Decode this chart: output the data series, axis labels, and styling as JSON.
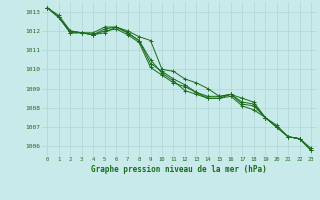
{
  "title": "Graphe pression niveau de la mer (hPa)",
  "background_color": "#c8eaea",
  "grid_color": "#b0d4d4",
  "line_color": "#1a6b1a",
  "text_color": "#1a6b1a",
  "xlim": [
    -0.5,
    23.5
  ],
  "ylim": [
    1005.5,
    1013.5
  ],
  "yticks": [
    1006,
    1007,
    1008,
    1009,
    1010,
    1011,
    1012,
    1013
  ],
  "xticks": [
    0,
    1,
    2,
    3,
    4,
    5,
    6,
    7,
    8,
    9,
    10,
    11,
    12,
    13,
    14,
    15,
    16,
    17,
    18,
    19,
    20,
    21,
    22,
    23
  ],
  "series": [
    [
      1013.2,
      1012.8,
      1012.0,
      1011.9,
      1011.9,
      1012.2,
      1012.2,
      1012.0,
      1011.7,
      1011.5,
      1010.0,
      1009.9,
      1009.5,
      1009.3,
      1009.0,
      1008.6,
      1008.7,
      1008.5,
      1008.3,
      1007.5,
      1007.1,
      1006.5,
      1006.4,
      1005.9
    ],
    [
      1013.2,
      1012.7,
      1011.9,
      1011.9,
      1011.8,
      1012.0,
      1012.1,
      1011.8,
      1011.4,
      1010.1,
      1009.7,
      1009.3,
      1009.1,
      1008.8,
      1008.6,
      1008.6,
      1008.7,
      1008.3,
      1008.2,
      1007.5,
      1007.0,
      1006.5,
      1006.4,
      1005.8
    ],
    [
      1013.2,
      1012.7,
      1012.0,
      1011.9,
      1011.8,
      1012.1,
      1012.2,
      1011.9,
      1011.5,
      1010.3,
      1009.9,
      1009.5,
      1009.2,
      1008.8,
      1008.5,
      1008.5,
      1008.6,
      1008.1,
      1007.9,
      1007.5,
      1007.0,
      1006.5,
      1006.4,
      1005.8
    ],
    [
      1013.2,
      1012.7,
      1011.9,
      1011.9,
      1011.8,
      1011.9,
      1012.2,
      1011.9,
      1011.5,
      1010.5,
      1009.8,
      1009.4,
      1008.9,
      1008.7,
      1008.5,
      1008.5,
      1008.7,
      1008.2,
      1008.1,
      1007.5,
      1007.0,
      1006.5,
      1006.4,
      1005.8
    ]
  ]
}
